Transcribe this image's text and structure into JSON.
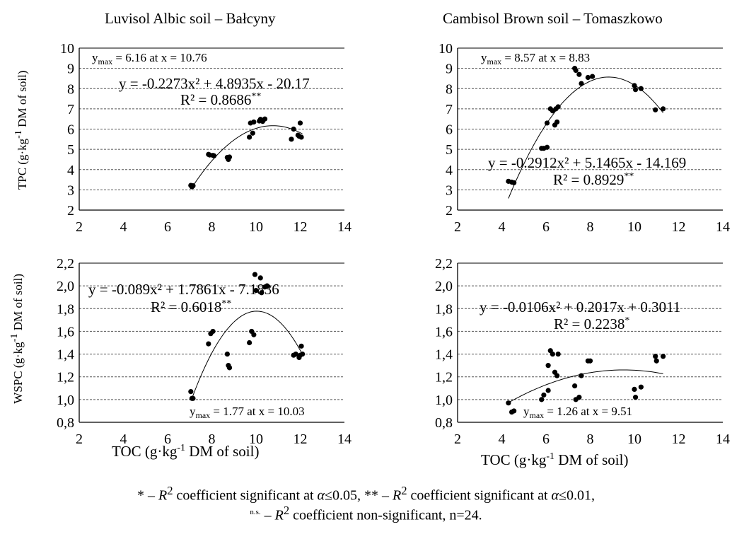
{
  "columns": [
    {
      "title": "Luvisol Albic soil – Bałcyny"
    },
    {
      "title": "Cambisol Brown soil – Tomaszkowo"
    }
  ],
  "xlabel_pre": "TOC (g·kg",
  "xlabel_sup": "-1",
  "xlabel_post": " DM of soil)",
  "ylabels": {
    "tpc": {
      "pre": "TPC (g·kg",
      "sup": "-1",
      "post": " DM of soil)"
    },
    "wspc": {
      "pre": "WSPC (g·kg",
      "sup": "-1",
      "post": " DM of soil)"
    }
  },
  "footnote": {
    "line1_a": "* – ",
    "line1_r": "R",
    "line1_b": " coefficient significant at ",
    "line1_alpha": "α",
    "line1_c": "≤0.05, ** – ",
    "line1_d": " coefficient significant at ",
    "line1_e": "≤0.01,",
    "line2_ns": "n.s.",
    "line2_a": " – ",
    "line2_b": " coefficient non-significant, n=24."
  },
  "chart_data": [
    {
      "type": "scatter",
      "panel": "Luvisol Albic soil – Bałcyny, TPC",
      "xlim": [
        2,
        14
      ],
      "ylim": [
        2,
        10
      ],
      "xticks": [
        "2",
        "4",
        "6",
        "8",
        "10",
        "12",
        "14"
      ],
      "yticks": [
        "2",
        "3",
        "4",
        "5",
        "6",
        "7",
        "8",
        "9",
        "10"
      ],
      "grid": "horizontal dashed",
      "points": [
        [
          7.05,
          3.22
        ],
        [
          7.1,
          3.15
        ],
        [
          7.15,
          3.2
        ],
        [
          7.85,
          4.75
        ],
        [
          7.9,
          4.72
        ],
        [
          8.05,
          4.7
        ],
        [
          8.1,
          4.68
        ],
        [
          8.7,
          4.6
        ],
        [
          8.75,
          4.5
        ],
        [
          8.8,
          4.62
        ],
        [
          9.7,
          5.6
        ],
        [
          9.75,
          6.3
        ],
        [
          9.85,
          5.8
        ],
        [
          9.9,
          6.35
        ],
        [
          10.15,
          6.4
        ],
        [
          10.2,
          6.48
        ],
        [
          10.3,
          6.38
        ],
        [
          10.4,
          6.5
        ],
        [
          11.6,
          5.5
        ],
        [
          11.7,
          6.0
        ],
        [
          11.9,
          5.7
        ],
        [
          11.95,
          5.65
        ],
        [
          12.0,
          6.3
        ],
        [
          12.05,
          5.6
        ]
      ],
      "trend": {
        "a": -0.2273,
        "b": 4.8935,
        "c": -20.17,
        "x_from": 7.1,
        "x_to": 12.1
      },
      "equation": "y = -0.2273x² + 4.8935x - 20.17",
      "r2": "R² = 0.8686",
      "r2_sig": "**",
      "ymax_label": "y",
      "ymax_sub": "max",
      "ymax_text": " = 6.16 at x = 10.76"
    },
    {
      "type": "scatter",
      "panel": "Cambisol Brown soil – Tomaszkowo, TPC",
      "xlim": [
        2,
        14
      ],
      "ylim": [
        2,
        10
      ],
      "xticks": [
        "2",
        "4",
        "6",
        "8",
        "10",
        "12",
        "14"
      ],
      "yticks": [
        "2",
        "3",
        "4",
        "5",
        "6",
        "7",
        "8",
        "9",
        "10"
      ],
      "grid": "horizontal dashed",
      "points": [
        [
          4.3,
          3.42
        ],
        [
          4.45,
          3.38
        ],
        [
          4.55,
          3.35
        ],
        [
          5.8,
          5.05
        ],
        [
          5.9,
          5.05
        ],
        [
          6.05,
          5.1
        ],
        [
          6.05,
          6.3
        ],
        [
          6.2,
          7.0
        ],
        [
          6.3,
          6.9
        ],
        [
          6.4,
          6.2
        ],
        [
          6.45,
          7.0
        ],
        [
          6.5,
          6.35
        ],
        [
          6.55,
          7.1
        ],
        [
          7.3,
          9.0
        ],
        [
          7.35,
          8.9
        ],
        [
          7.5,
          8.7
        ],
        [
          7.6,
          8.25
        ],
        [
          7.9,
          8.55
        ],
        [
          8.1,
          8.6
        ],
        [
          10.0,
          8.15
        ],
        [
          10.05,
          7.95
        ],
        [
          10.3,
          8.0
        ],
        [
          10.95,
          6.95
        ],
        [
          11.3,
          7.0
        ]
      ],
      "trend": {
        "a": -0.2912,
        "b": 5.1465,
        "c": -14.169,
        "x_from": 4.3,
        "x_to": 11.3
      },
      "equation": "y = -0.2912x² + 5.1465x - 14.169",
      "r2": "R² = 0.8929",
      "r2_sig": "**",
      "ymax_label": "y",
      "ymax_sub": "max",
      "ymax_text": " = 8.57 at x = 8.83"
    },
    {
      "type": "scatter",
      "panel": "Luvisol Albic soil – Bałcyny, WSPC",
      "xlim": [
        2,
        14
      ],
      "ylim": [
        0.8,
        2.2
      ],
      "xticks": [
        "2",
        "4",
        "6",
        "8",
        "10",
        "12",
        "14"
      ],
      "yticks": [
        "0,8",
        "1,0",
        "1,2",
        "1,4",
        "1,6",
        "1,8",
        "2,0",
        "2,2"
      ],
      "grid": "horizontal dashed",
      "points": [
        [
          7.05,
          1.07
        ],
        [
          7.1,
          1.01
        ],
        [
          7.15,
          1.01
        ],
        [
          7.85,
          1.49
        ],
        [
          7.95,
          1.58
        ],
        [
          8.05,
          1.6
        ],
        [
          8.7,
          1.4
        ],
        [
          8.75,
          1.3
        ],
        [
          8.8,
          1.28
        ],
        [
          9.7,
          1.5
        ],
        [
          9.8,
          1.6
        ],
        [
          9.9,
          1.57
        ],
        [
          9.95,
          2.1
        ],
        [
          10.0,
          1.96
        ],
        [
          10.2,
          2.07
        ],
        [
          10.25,
          1.94
        ],
        [
          10.4,
          1.99
        ],
        [
          10.5,
          2.0
        ],
        [
          11.7,
          1.39
        ],
        [
          11.8,
          1.4
        ],
        [
          11.95,
          1.37
        ],
        [
          12.0,
          1.39
        ],
        [
          12.05,
          1.47
        ],
        [
          12.1,
          1.4
        ]
      ],
      "trend": {
        "a": -0.089,
        "b": 1.7861,
        "c": -7.1836,
        "x_from": 7.1,
        "x_to": 12.1
      },
      "equation": "y = -0.089x² + 1.7861x - 7.1836",
      "r2": "R² = 0.6018",
      "r2_sig": "**",
      "ymax_label": "y",
      "ymax_sub": "max",
      "ymax_text": " = 1.77 at x = 10.03"
    },
    {
      "type": "scatter",
      "panel": "Cambisol Brown soil – Tomaszkowo, WSPC",
      "xlim": [
        2,
        14
      ],
      "ylim": [
        0.8,
        2.2
      ],
      "xticks": [
        "2",
        "4",
        "6",
        "8",
        "10",
        "12",
        "14"
      ],
      "yticks": [
        "0,8",
        "1,0",
        "1,2",
        "1,4",
        "1,6",
        "1,8",
        "2,0",
        "2,2"
      ],
      "grid": "horizontal dashed",
      "points": [
        [
          4.3,
          0.97
        ],
        [
          4.45,
          0.89
        ],
        [
          4.55,
          0.9
        ],
        [
          5.8,
          1.0
        ],
        [
          5.9,
          1.04
        ],
        [
          6.1,
          1.08
        ],
        [
          6.1,
          1.3
        ],
        [
          6.2,
          1.43
        ],
        [
          6.3,
          1.4
        ],
        [
          6.4,
          1.24
        ],
        [
          6.5,
          1.21
        ],
        [
          6.55,
          1.4
        ],
        [
          7.3,
          1.12
        ],
        [
          7.35,
          1.0
        ],
        [
          7.5,
          1.02
        ],
        [
          7.6,
          1.21
        ],
        [
          7.9,
          1.34
        ],
        [
          8.0,
          1.34
        ],
        [
          10.0,
          1.09
        ],
        [
          10.05,
          1.02
        ],
        [
          10.3,
          1.11
        ],
        [
          10.95,
          1.38
        ],
        [
          11.0,
          1.34
        ],
        [
          11.3,
          1.38
        ]
      ],
      "trend": {
        "a": -0.0106,
        "b": 0.2017,
        "c": 0.3011,
        "x_from": 4.3,
        "x_to": 11.3
      },
      "equation": "y = -0.0106x² + 0.2017x + 0.3011",
      "r2": "R² = 0.2238",
      "r2_sig": "*",
      "ymax_label": "y",
      "ymax_sub": "max",
      "ymax_text": " = 1.26 at x = 9.51"
    }
  ]
}
